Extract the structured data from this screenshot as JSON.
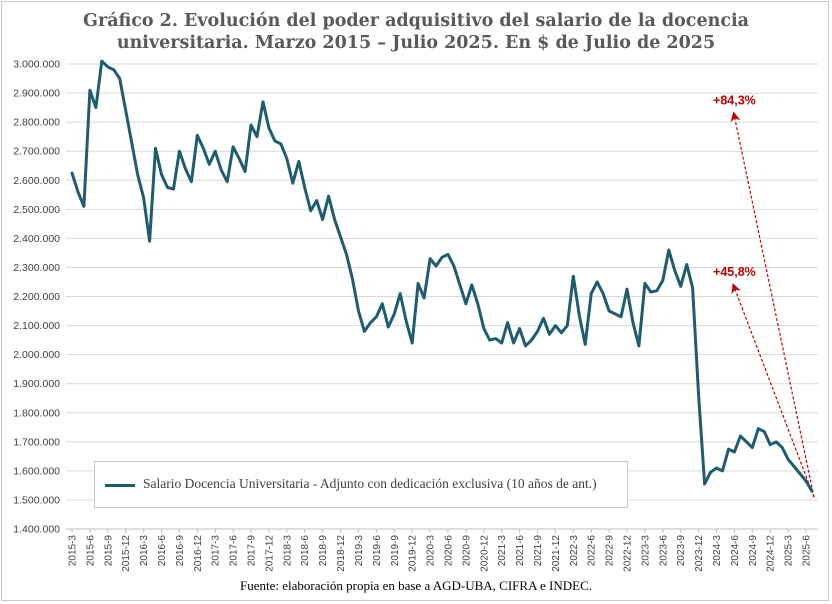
{
  "title_line1": "Gráfico 2. Evolución del poder adquisitivo del salario de la docencia",
  "title_line2": "universitaria. Marzo 2015 – Julio 2025. En $ de Julio de 2025",
  "source": "Fuente:  elaboración propia en base a AGD-UBA,  CIFRA  e INDEC.",
  "legend_label": "Salario Docencia Universitaria - Adjunto con dedicación exclusiva (10 años de ant.)",
  "colors": {
    "line": "#1f5c70",
    "annotation": "#c00000",
    "grid": "#d9d9d9"
  },
  "chart_data": {
    "type": "line",
    "title": "Gráfico 2. Evolución del poder adquisitivo del salario de la docencia universitaria. Marzo 2015 – Julio 2025. En $ de Julio de 2025",
    "xlabel": "",
    "ylabel": "",
    "ylim": [
      1400000,
      3000000
    ],
    "grid": true,
    "legend_position": "bottom-left",
    "y_ticks": [
      "1.400.000",
      "1.500.000",
      "1.600.000",
      "1.700.000",
      "1.800.000",
      "1.900.000",
      "2.000.000",
      "2.100.000",
      "2.200.000",
      "2.300.000",
      "2.400.000",
      "2.500.000",
      "2.600.000",
      "2.700.000",
      "2.800.000",
      "2.900.000",
      "3.000.000"
    ],
    "x_tick_labels": [
      "2015-3",
      "2015-6",
      "2015-9",
      "2015-12",
      "2016-3",
      "2016-6",
      "2016-9",
      "2016-12",
      "2017-3",
      "2017-6",
      "2017-9",
      "2017-12",
      "2018-3",
      "2018-6",
      "2018-9",
      "2018-12",
      "2019-3",
      "2019-6",
      "2019-9",
      "2019-12",
      "2020-3",
      "2020-6",
      "2020-9",
      "2020-12",
      "2021-3",
      "2021-6",
      "2021-9",
      "2021-12",
      "2022-3",
      "2022-6",
      "2022-9",
      "2022-12",
      "2023-3",
      "2023-6",
      "2023-9",
      "2023-12",
      "2024-3",
      "2024-6",
      "2024-9",
      "2024-12",
      "2025-3",
      "2025-6"
    ],
    "series": [
      {
        "name": "Salario Docencia Universitaria - Adjunto con dedicación exclusiva (10 años de ant.)",
        "x": [
          "2015-3",
          "2015-4",
          "2015-5",
          "2015-6",
          "2015-7",
          "2015-8",
          "2015-9",
          "2015-10",
          "2015-11",
          "2015-12",
          "2016-1",
          "2016-2",
          "2016-3",
          "2016-4",
          "2016-5",
          "2016-6",
          "2016-7",
          "2016-8",
          "2016-9",
          "2016-10",
          "2016-11",
          "2016-12",
          "2017-1",
          "2017-2",
          "2017-3",
          "2017-4",
          "2017-5",
          "2017-6",
          "2017-7",
          "2017-8",
          "2017-9",
          "2017-10",
          "2017-11",
          "2017-12",
          "2018-1",
          "2018-2",
          "2018-3",
          "2018-4",
          "2018-5",
          "2018-6",
          "2018-7",
          "2018-8",
          "2018-9",
          "2018-10",
          "2018-11",
          "2018-12",
          "2019-1",
          "2019-2",
          "2019-3",
          "2019-4",
          "2019-5",
          "2019-6",
          "2019-7",
          "2019-8",
          "2019-9",
          "2019-10",
          "2019-11",
          "2019-12",
          "2020-1",
          "2020-2",
          "2020-3",
          "2020-4",
          "2020-5",
          "2020-6",
          "2020-7",
          "2020-8",
          "2020-9",
          "2020-10",
          "2020-11",
          "2020-12",
          "2021-1",
          "2021-2",
          "2021-3",
          "2021-4",
          "2021-5",
          "2021-6",
          "2021-7",
          "2021-8",
          "2021-9",
          "2021-10",
          "2021-11",
          "2021-12",
          "2022-1",
          "2022-2",
          "2022-3",
          "2022-4",
          "2022-5",
          "2022-6",
          "2022-7",
          "2022-8",
          "2022-9",
          "2022-10",
          "2022-11",
          "2022-12",
          "2023-1",
          "2023-2",
          "2023-3",
          "2023-4",
          "2023-5",
          "2023-6",
          "2023-7",
          "2023-8",
          "2023-9",
          "2023-10",
          "2023-11",
          "2023-12",
          "2024-1",
          "2024-2",
          "2024-3",
          "2024-4",
          "2024-5",
          "2024-6",
          "2024-7",
          "2024-8",
          "2024-9",
          "2024-10",
          "2024-11",
          "2024-12",
          "2025-1",
          "2025-2",
          "2025-3",
          "2025-4",
          "2025-5",
          "2025-6",
          "2025-7"
        ],
        "values": [
          2625000,
          2560000,
          2510000,
          2910000,
          2850000,
          3010000,
          2990000,
          2980000,
          2950000,
          2840000,
          2730000,
          2620000,
          2540000,
          2390000,
          2710000,
          2620000,
          2575000,
          2570000,
          2700000,
          2640000,
          2595000,
          2755000,
          2710000,
          2655000,
          2700000,
          2635000,
          2595000,
          2715000,
          2675000,
          2630000,
          2790000,
          2750000,
          2870000,
          2780000,
          2735000,
          2725000,
          2675000,
          2590000,
          2665000,
          2575000,
          2495000,
          2530000,
          2465000,
          2545000,
          2465000,
          2405000,
          2345000,
          2260000,
          2150000,
          2080000,
          2110000,
          2130000,
          2175000,
          2095000,
          2140000,
          2210000,
          2115000,
          2040000,
          2245000,
          2195000,
          2330000,
          2305000,
          2335000,
          2345000,
          2305000,
          2240000,
          2175000,
          2240000,
          2175000,
          2090000,
          2050000,
          2055000,
          2040000,
          2110000,
          2040000,
          2090000,
          2030000,
          2050000,
          2080000,
          2125000,
          2070000,
          2100000,
          2075000,
          2100000,
          2270000,
          2135000,
          2035000,
          2210000,
          2250000,
          2210000,
          2150000,
          2140000,
          2130000,
          2225000,
          2110000,
          2030000,
          2245000,
          2215000,
          2220000,
          2255000,
          2360000,
          2290000,
          2235000,
          2310000,
          2230000,
          1860000,
          1555000,
          1595000,
          1610000,
          1600000,
          1675000,
          1665000,
          1720000,
          1700000,
          1680000,
          1745000,
          1735000,
          1690000,
          1700000,
          1680000,
          1640000,
          1615000,
          1590000,
          1565000,
          1530000
        ]
      }
    ],
    "annotations": [
      {
        "text": "+84,3%",
        "target_x": "2024-6",
        "target_y": 2820000
      },
      {
        "text": "+45,8%",
        "target_x": "2024-6",
        "target_y": 2230000
      }
    ]
  }
}
